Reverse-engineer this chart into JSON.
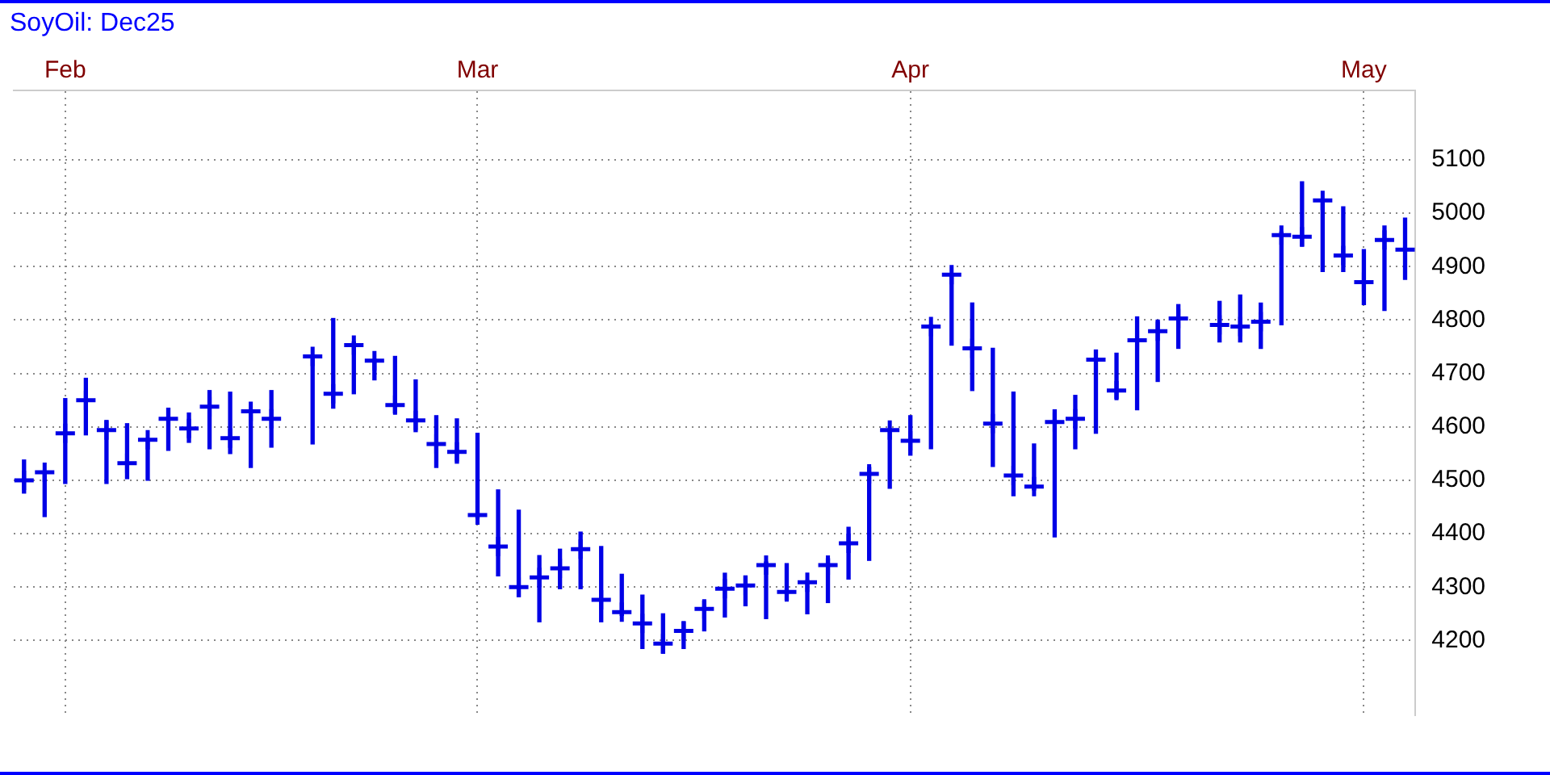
{
  "chart_data": {
    "type": "bar",
    "title": "SoyOil: Dec25",
    "categories": [
      null,
      null,
      "Feb",
      null,
      null,
      null,
      null,
      null,
      null,
      null,
      null,
      null,
      null,
      null,
      null,
      null,
      null,
      null,
      null,
      null,
      null,
      null,
      "Mar",
      null,
      null,
      null,
      null,
      null,
      null,
      null,
      null,
      null,
      null,
      null,
      null,
      null,
      null,
      null,
      null,
      null,
      null,
      null,
      null,
      "Apr",
      null,
      null,
      null,
      null,
      null,
      null,
      null,
      null,
      null,
      null,
      null,
      null,
      null,
      null,
      null,
      null,
      null,
      null,
      null,
      null,
      null,
      "May",
      null,
      null
    ],
    "series": [
      {
        "type": "bar",
        "color": "#0000e6",
        "base": [
          4476,
          4432,
          4494,
          4585,
          4494,
          4503,
          4500,
          4556,
          4571,
          4559,
          4550,
          4524,
          4562,
          null,
          4568,
          4635,
          4662,
          4688,
          4626,
          4591,
          4524,
          4532,
          4429,
          4321,
          4282,
          4235,
          4297,
          4297,
          4235,
          4247,
          4185,
          4176,
          4185,
          4218,
          4244,
          4265,
          4241,
          4276,
          4250,
          4271,
          4315,
          4350,
          4485,
          4547,
          4559,
          4753,
          4668,
          4526,
          4471,
          4482,
          4394,
          4559,
          4588,
          4653,
          4632,
          4685,
          4747,
          null,
          4759,
          4759,
          4747,
          4791,
          4938,
          4891,
          4891,
          4829,
          4818,
          4876
        ],
        "values": [
          62,
          83,
          159,
          106,
          118,
          103,
          76,
          79,
          55,
          109,
          115,
          108,
          106,
          null,
          164,
          168,
          97,
          38,
          106,
          97,
          97,
          83,
          159,
          161,
          162,
          124,
          74,
          106,
          141,
          77,
          100,
          74,
          50,
          56,
          82,
          56,
          106,
          68,
          62,
          82,
          97,
          174,
          109,
          74,
          232,
          132,
          164,
          221,
          194,
          86,
          238,
          100,
          156,
          85,
          174,
          115,
          82,
          null,
          76,
          88,
          85,
          174,
          121,
          133,
          121,
          103,
          158,
          115
        ]
      },
      {
        "type": "scatter",
        "color": "#0000e6",
        "marker": "cross",
        "values": [
          4500,
          4515,
          4588,
          4650,
          4594,
          4532,
          4576,
          4615,
          4597,
          4638,
          4579,
          4629,
          4615,
          null,
          4732,
          4662,
          4753,
          4724,
          4641,
          4612,
          4568,
          4553,
          4435,
          4376,
          4300,
          4318,
          4335,
          4371,
          4276,
          4253,
          4232,
          4194,
          4218,
          4259,
          4297,
          4303,
          4341,
          4291,
          4309,
          4341,
          4382,
          4512,
          4594,
          4574,
          4788,
          4885,
          4747,
          4606,
          4509,
          4488,
          4609,
          4615,
          4726,
          4668,
          4762,
          4779,
          4803,
          null,
          4791,
          4788,
          4797,
          4959,
          4956,
          5024,
          4921,
          4871,
          4950,
          4932
        ]
      }
    ],
    "ylim": [
      4060,
      5230
    ],
    "yticks": [
      4200,
      4300,
      4400,
      4500,
      4600,
      4700,
      4800,
      4900,
      5000,
      5100
    ],
    "grid": true
  }
}
